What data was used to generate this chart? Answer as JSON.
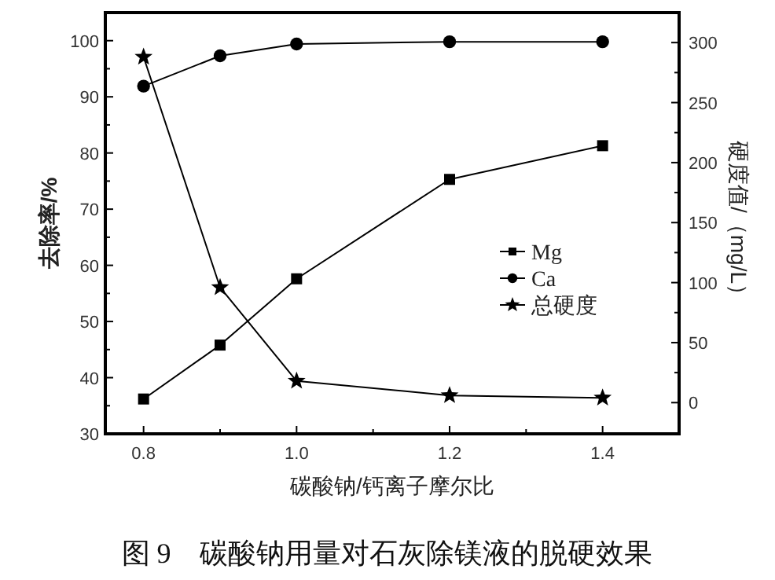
{
  "chart_data": {
    "type": "line",
    "xlabel": "碳酸钠/钙离子摩尔比",
    "ylabel": "去除率/%",
    "y2label": "硬度值/（mg/L）",
    "annotations": [
      "图 9　碳酸钠用量对石灰除镁液的脱硬效果"
    ],
    "x": [
      0.8,
      0.9,
      1.0,
      1.2,
      1.4
    ],
    "series": [
      {
        "name": "Mg",
        "color": "#000000",
        "marker": "square",
        "values": [
          36.2,
          45.8,
          57.6,
          75.3,
          81.3
        ]
      },
      {
        "name": "Ca",
        "color": "#000000",
        "marker": "circle",
        "values": [
          91.9,
          97.3,
          99.4,
          99.8,
          99.8
        ]
      },
      {
        "name": "总硬度",
        "color": "#000000",
        "marker": "star",
        "axis": "y2",
        "values": [
          288,
          96,
          18,
          6,
          4
        ]
      }
    ],
    "xlim": [
      0.75,
      1.5
    ],
    "xticks": [
      0.8,
      {
        "value": 0.9,
        "label": null
      },
      {
        "value": 1,
        "label": "1.0"
      },
      {
        "value": 1.1,
        "label": null
      },
      1.2,
      {
        "value": 1.3,
        "label": null
      },
      1.4
    ],
    "ylim": [
      30,
      105
    ],
    "yticks": [
      30,
      {
        "value": 35,
        "label": null
      },
      40,
      {
        "value": 45,
        "label": null
      },
      50,
      {
        "value": 55,
        "label": null
      },
      60,
      {
        "value": 65,
        "label": null
      },
      70,
      {
        "value": 75,
        "label": null
      },
      80,
      {
        "value": 85,
        "label": null
      },
      90,
      {
        "value": 95,
        "label": null
      },
      100
    ],
    "y2lim": [
      -26,
      325
    ],
    "y2ticks": [
      0,
      {
        "value": 25,
        "label": null
      },
      50,
      {
        "value": 75,
        "label": null
      },
      100,
      {
        "value": 125,
        "label": null
      },
      150,
      {
        "value": 175,
        "label": null
      },
      200,
      {
        "value": 225,
        "label": null
      },
      250,
      {
        "value": 275,
        "label": null
      },
      300
    ],
    "grid": false,
    "legend": "right",
    "line_style": "solid"
  }
}
